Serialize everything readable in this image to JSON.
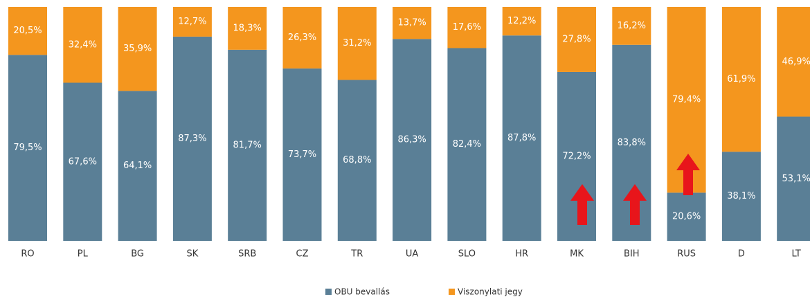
{
  "chart_data": {
    "type": "bar",
    "stacked": true,
    "categories": [
      "RO",
      "PL",
      "BG",
      "SK",
      "SRB",
      "CZ",
      "TR",
      "UA",
      "SLO",
      "HR",
      "MK",
      "BIH",
      "RUS",
      "D",
      "LT"
    ],
    "ylim": [
      0,
      100
    ],
    "series": [
      {
        "name": "OBU bevallás",
        "color": "#5a7f96",
        "values": [
          79.5,
          67.6,
          64.1,
          87.3,
          81.7,
          73.7,
          68.8,
          86.3,
          82.4,
          87.8,
          72.2,
          83.8,
          20.6,
          38.1,
          53.1
        ],
        "value_labels": [
          "79,5%",
          "67,6%",
          "64,1%",
          "87,3%",
          "81,7%",
          "73,7%",
          "68,8%",
          "86,3%",
          "82,4%",
          "87,8%",
          "72,2%",
          "83,8%",
          "20,6%",
          "38,1%",
          "53,1%"
        ]
      },
      {
        "name": "Viszonylati jegy",
        "color": "#f4961e",
        "values": [
          20.5,
          32.4,
          35.9,
          12.7,
          18.3,
          26.3,
          31.2,
          13.7,
          17.6,
          12.2,
          27.8,
          16.2,
          79.4,
          61.9,
          46.9
        ],
        "value_labels": [
          "20,5%",
          "32,4%",
          "35,9%",
          "12,7%",
          "18,3%",
          "26,3%",
          "31,2%",
          "13,7%",
          "17,6%",
          "12,2%",
          "27,8%",
          "16,2%",
          "79,4%",
          "61,9%",
          "46,9%"
        ]
      }
    ]
  }
}
